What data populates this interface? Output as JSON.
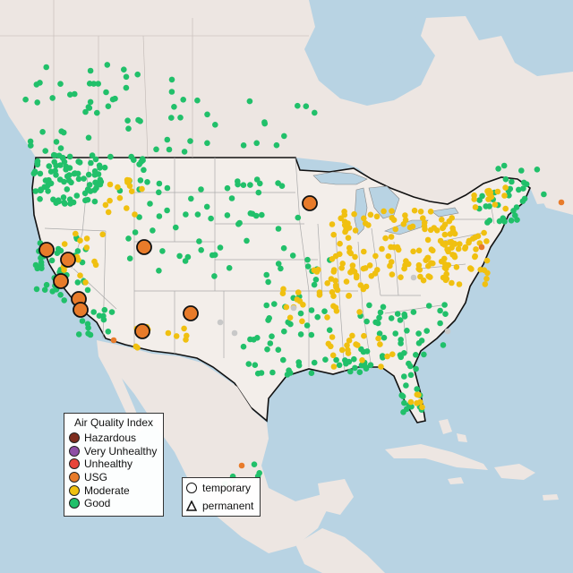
{
  "legend": {
    "title": "Air Quality Index",
    "items": [
      {
        "label": "Hazardous",
        "color": "#7e2d1e"
      },
      {
        "label": "Very Unhealthy",
        "color": "#8e4fa5"
      },
      {
        "label": "Unhealthy",
        "color": "#e8453a"
      },
      {
        "label": "USG",
        "color": "#e87b2a"
      },
      {
        "label": "Moderate",
        "color": "#f0c010"
      },
      {
        "label": "Good",
        "color": "#21c06a"
      }
    ]
  },
  "shape_legend": {
    "temporary": "temporary",
    "permanent": "permanent"
  },
  "colors": {
    "water": "#b8d3e3",
    "land": "#ede6e2",
    "us_land": "#f3eeea",
    "border": "#111111",
    "state_line": "#aaaaaa",
    "gray_monitor": "#c8c8c8"
  }
}
